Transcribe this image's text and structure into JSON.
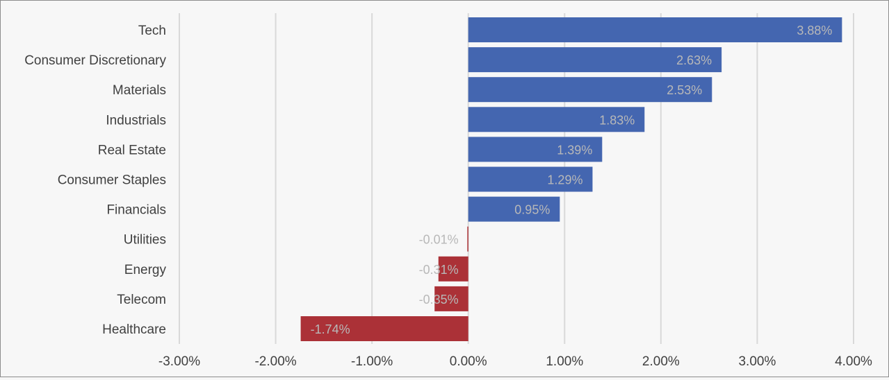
{
  "chart_data": {
    "type": "bar",
    "orientation": "horizontal",
    "title": "",
    "xlabel": "",
    "ylabel": "",
    "categories": [
      "Tech",
      "Consumer Discretionary",
      "Materials",
      "Industrials",
      "Real Estate",
      "Consumer Staples",
      "Financials",
      "Utilities",
      "Energy",
      "Telecom",
      "Healthcare"
    ],
    "values": [
      3.88,
      2.63,
      2.53,
      1.83,
      1.39,
      1.29,
      0.95,
      -0.01,
      -0.31,
      -0.35,
      -1.74
    ],
    "value_labels": [
      "3.88%",
      "2.63%",
      "2.53%",
      "1.83%",
      "1.39%",
      "1.29%",
      "0.95%",
      "-0.01%",
      "-0.31%",
      "-0.35%",
      "-1.74%"
    ],
    "xlim": [
      -3,
      4
    ],
    "xticks": [
      -3,
      -2,
      -1,
      0,
      1,
      2,
      3,
      4
    ],
    "xtick_labels": [
      "-3.00%",
      "-2.00%",
      "-1.00%",
      "0.00%",
      "1.00%",
      "2.00%",
      "3.00%",
      "4.00%"
    ],
    "grid": "vertical",
    "legend": "none",
    "colors": {
      "positive": "#4466b0",
      "negative": "#ab3137",
      "gridline": "#d9d9d9",
      "background": "#f7f7f7",
      "label_text": "#404040",
      "value_text": "#b8b8b8"
    }
  }
}
